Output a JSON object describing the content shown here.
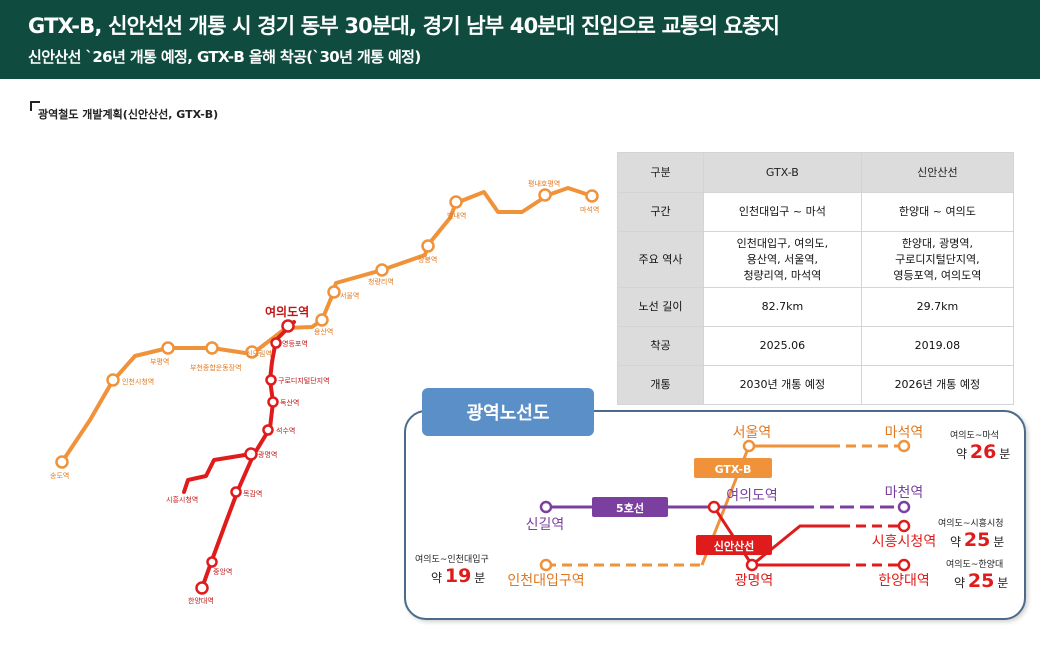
{
  "header": {
    "title": "GTX-B, 신안선선 개통 시 경기 동부 30분대, 경기 남부 40분대 진입으로 교통의 요충지",
    "subtitle": "신안산선 `26년 개통 예정, GTX-B 올해 착공(`30년 개통 예정)",
    "background_color": "#0f4c3f"
  },
  "section_label": "광역철도 개발계획(신안산선, GTX-B)",
  "map": {
    "highlight_label": "여의도역",
    "gtx_color": "#f0923a",
    "shinansan_color": "#e01b1b",
    "gtx_stations": [
      "송도역",
      "인천시청역",
      "부평역",
      "부천종합운동장역",
      "신도림역",
      "여의도역",
      "용산역",
      "서울역",
      "청량리역",
      "상봉역",
      "별내역",
      "평내호평역",
      "마석역"
    ],
    "shinansan_stations": [
      "영등포역",
      "구로디지털단지역",
      "독산역",
      "석수역",
      "광명역",
      "목감역",
      "시흥시청역",
      "중앙역",
      "한양대역"
    ]
  },
  "table": {
    "headers": [
      "구분",
      "GTX-B",
      "신안산선"
    ],
    "rows": [
      {
        "label": "구간",
        "gtx": "인천대입구 ~ 마석",
        "sin": "한양대 ~ 여의도"
      },
      {
        "label": "주요 역사",
        "gtx": "인천대입구, 여의도,\n용산역, 서울역,\n청량리역, 마석역",
        "sin": "한양대, 광명역,\n구로디지털단지역,\n영등포역, 여의도역"
      },
      {
        "label": "노선 길이",
        "gtx": "82.7km",
        "sin": "29.7km"
      },
      {
        "label": "착공",
        "gtx": "2025.06",
        "sin": "2019.08"
      },
      {
        "label": "개통",
        "gtx": "2030년 개통 예정",
        "sin": "2026년 개통 예정"
      }
    ]
  },
  "diagram": {
    "title": "광역노선도",
    "stations": {
      "seoul": "서울역",
      "maseok": "마석역",
      "sinhil": "신길역",
      "yeouido": "여의도역",
      "macheon": "마천역",
      "incheon_univ": "인천대입구역",
      "gwangmyeong": "광명역",
      "siheung": "시흥시청역",
      "hanyang": "한양대역"
    },
    "line_badges": {
      "gtx": "GTX-B",
      "line5": "5호선",
      "shinansan": "신안산선"
    },
    "travel_times": [
      {
        "route": "여의도~마석",
        "approx": "약",
        "minutes": "26",
        "unit": "분"
      },
      {
        "route": "여의도~시흥시청",
        "approx": "약",
        "minutes": "25",
        "unit": "분"
      },
      {
        "route": "여의도~한양대",
        "approx": "약",
        "minutes": "25",
        "unit": "분"
      },
      {
        "route": "여의도~인천대입구",
        "approx": "약",
        "minutes": "19",
        "unit": "분"
      }
    ],
    "colors": {
      "gtx": "#f0923a",
      "line5": "#7b3fa0",
      "shinansan": "#e01b1b",
      "title_bg": "#5b8fc7"
    }
  }
}
